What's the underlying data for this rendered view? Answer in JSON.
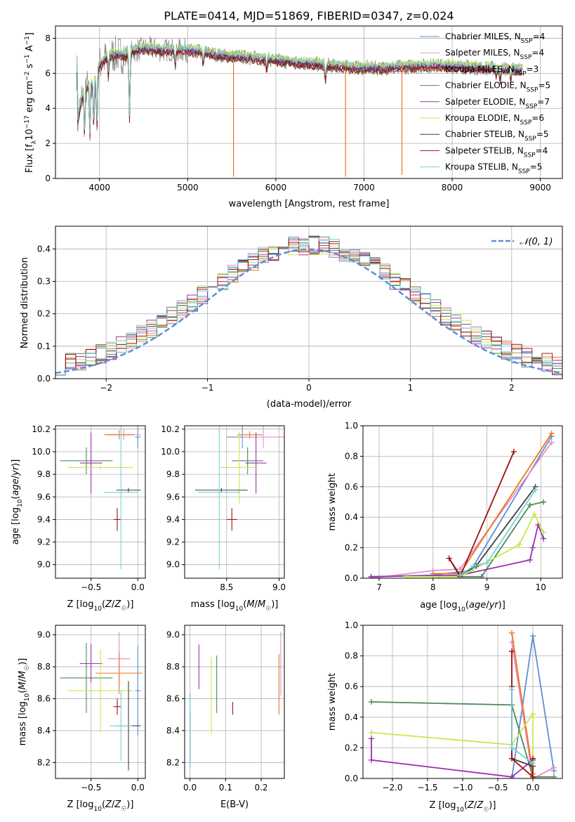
{
  "figure_title": "PLATE=0414, MJD=51869, FIBERID=0347, z=0.024",
  "colors": {
    "grid": "#b0b0b0",
    "gauss": "#5b8fd6",
    "data_gray": "#808080",
    "series": {
      "Chabrier MILES": "#5b8fd6",
      "Salpeter MILES": "#e58fc4",
      "Kroupa MILES": "#e87722",
      "Chabrier ELODIE": "#4e8a5a",
      "Salpeter ELODIE": "#9b30b0",
      "Kroupa ELODIE": "#c9e84a",
      "Chabrier STELIB": "#404040",
      "Salpeter STELIB": "#a01010",
      "Kroupa STELIB": "#76d2d6"
    }
  },
  "chart_data": [
    {
      "id": "spectrum",
      "type": "line",
      "xlabel": "wavelength [Angstrom, rest frame]",
      "ylabel": "Flux [f_λ10^-17 erg cm^-2 s^-1 A^-1]",
      "xlim": [
        3500,
        9250
      ],
      "ylim": [
        0,
        8.7
      ],
      "xticks": [
        4000,
        5000,
        6000,
        7000,
        8000,
        9000
      ],
      "yticks": [
        0,
        2,
        4,
        6,
        8
      ],
      "legend_position": "top-right",
      "legend": [
        {
          "label": "Chabrier MILES, N_SSP=4",
          "color": "#5b8fd6"
        },
        {
          "label": "Salpeter MILES, N_SSP=4",
          "color": "#e58fc4"
        },
        {
          "label": "Kroupa MILES, N_SSP=3",
          "color": "#e87722"
        },
        {
          "label": "Chabrier ELODIE, N_SSP=5",
          "color": "#4e8a5a"
        },
        {
          "label": "Salpeter ELODIE, N_SSP=7",
          "color": "#9b30b0"
        },
        {
          "label": "Kroupa ELODIE, N_SSP=6",
          "color": "#c9e84a"
        },
        {
          "label": "Chabrier STELIB, N_SSP=5",
          "color": "#404040"
        },
        {
          "label": "Salpeter STELIB, N_SSP=4",
          "color": "#a01010"
        },
        {
          "label": "Kroupa STELIB, N_SSP=5",
          "color": "#76d2d6"
        }
      ],
      "continuum": [
        [
          3750,
          3.2
        ],
        [
          3800,
          4.6
        ],
        [
          3850,
          5.2
        ],
        [
          3900,
          5.3
        ],
        [
          3950,
          5.6
        ],
        [
          4000,
          6.5
        ],
        [
          4100,
          7.0
        ],
        [
          4200,
          7.1
        ],
        [
          4300,
          7.0
        ],
        [
          4400,
          7.3
        ],
        [
          4500,
          7.4
        ],
        [
          4600,
          7.4
        ],
        [
          4700,
          7.3
        ],
        [
          4800,
          7.35
        ],
        [
          5000,
          7.3
        ],
        [
          5200,
          7.2
        ],
        [
          5400,
          7.0
        ],
        [
          5600,
          6.95
        ],
        [
          5800,
          6.85
        ],
        [
          6000,
          6.75
        ],
        [
          6200,
          6.6
        ],
        [
          6400,
          6.55
        ],
        [
          6600,
          6.45
        ],
        [
          6800,
          6.35
        ],
        [
          7000,
          6.3
        ],
        [
          7200,
          6.3
        ],
        [
          7400,
          6.35
        ],
        [
          7600,
          6.4
        ],
        [
          7800,
          6.45
        ],
        [
          8000,
          6.4
        ],
        [
          8200,
          6.35
        ],
        [
          8400,
          6.3
        ],
        [
          8600,
          6.25
        ],
        [
          8800,
          6.2
        ],
        [
          9000,
          6.1
        ]
      ],
      "absorption_features": [
        [
          3830,
          2.6
        ],
        [
          3890,
          2.4
        ],
        [
          3935,
          3.0
        ],
        [
          3970,
          2.9
        ],
        [
          4100,
          5.8
        ],
        [
          4340,
          3.3
        ],
        [
          4860,
          6.4
        ],
        [
          5175,
          6.5
        ],
        [
          5895,
          6.2
        ],
        [
          6563,
          5.6
        ],
        [
          8500,
          5.8
        ],
        [
          8545,
          5.6
        ],
        [
          8665,
          5.7
        ]
      ],
      "artifacts": [
        [
          5520,
          0.1
        ],
        [
          6790,
          0.1
        ],
        [
          7430,
          0.2
        ]
      ]
    },
    {
      "id": "residual-histogram",
      "type": "bar",
      "xlabel": "(data-model)/error",
      "ylabel": "Normed distribution",
      "xlim": [
        -2.5,
        2.5
      ],
      "ylim": [
        0,
        0.47
      ],
      "xticks": [
        -2,
        -1,
        0,
        1,
        2
      ],
      "yticks": [
        0.0,
        0.1,
        0.2,
        0.3,
        0.4
      ],
      "legend": [
        {
          "label": "𝒩(0, 1)",
          "color": "#5b8fd6"
        }
      ],
      "gaussian": {
        "mu": 0,
        "sigma": 1
      }
    },
    {
      "id": "age-vs-metallicity",
      "type": "scatter",
      "xlabel": "Z [log10(Z/Z☉)]",
      "ylabel": "age  [log10(age/yr)]",
      "xlim": [
        -0.88,
        0.08
      ],
      "ylim": [
        8.88,
        10.23
      ],
      "xticks": [
        -0.5,
        0.0
      ],
      "yticks": [
        9.0,
        9.2,
        9.4,
        9.6,
        9.8,
        10.0,
        10.2
      ],
      "points": [
        {
          "series": "Chabrier MILES",
          "x": 0.0,
          "y": 10.13,
          "xerr": 0.03,
          "yerr": 0.1
        },
        {
          "series": "Salpeter MILES",
          "x": -0.15,
          "y": 10.15,
          "xerr": 0.18,
          "yerr": 0.05
        },
        {
          "series": "Kroupa MILES",
          "x": -0.2,
          "y": 10.15,
          "xerr": 0.16,
          "yerr": 0.04
        },
        {
          "series": "Chabrier ELODIE",
          "x": -0.55,
          "y": 9.92,
          "xerr": 0.28,
          "yerr": 0.12
        },
        {
          "series": "Salpeter ELODIE",
          "x": -0.5,
          "y": 9.9,
          "xerr": 0.12,
          "yerr": 0.27
        },
        {
          "series": "Kroupa ELODIE",
          "x": -0.4,
          "y": 9.86,
          "xerr": 0.35,
          "yerr": 0.02
        },
        {
          "series": "Chabrier STELIB",
          "x": -0.1,
          "y": 9.66,
          "xerr": 0.13,
          "yerr": 0.02
        },
        {
          "series": "Salpeter STELIB",
          "x": -0.22,
          "y": 9.4,
          "xerr": 0.04,
          "yerr": 0.1
        },
        {
          "series": "Kroupa STELIB",
          "x": -0.18,
          "y": 9.64,
          "xerr": 0.18,
          "yerr": 0.68
        }
      ]
    },
    {
      "id": "age-vs-mass",
      "type": "scatter",
      "xlabel": "mass [log10(M/M☉)]",
      "ylabel": "",
      "xlim": [
        8.1,
        9.05
      ],
      "ylim": [
        8.88,
        10.23
      ],
      "xticks": [
        8.5,
        9.0
      ],
      "yticks": [
        9.0,
        9.2,
        9.4,
        9.6,
        9.8,
        10.0,
        10.2
      ],
      "points": [
        {
          "series": "Chabrier MILES",
          "x": 8.65,
          "y": 10.13,
          "xerr": 0.15,
          "yerr": 0.1
        },
        {
          "series": "Salpeter MILES",
          "x": 8.85,
          "y": 10.13,
          "xerr": 0.2,
          "yerr": 0.1
        },
        {
          "series": "Kroupa MILES",
          "x": 8.72,
          "y": 10.15,
          "xerr": 0.12,
          "yerr": 0.03
        },
        {
          "series": "Chabrier ELODIE",
          "x": 8.7,
          "y": 9.92,
          "xerr": 0.15,
          "yerr": 0.12
        },
        {
          "series": "Salpeter ELODIE",
          "x": 8.78,
          "y": 9.9,
          "xerr": 0.1,
          "yerr": 0.27
        },
        {
          "series": "Kroupa ELODIE",
          "x": 8.62,
          "y": 9.86,
          "xerr": 0.18,
          "yerr": 0.32
        },
        {
          "series": "Chabrier STELIB",
          "x": 8.45,
          "y": 9.66,
          "xerr": 0.25,
          "yerr": 0.02
        },
        {
          "series": "Salpeter STELIB",
          "x": 8.55,
          "y": 9.4,
          "xerr": 0.05,
          "yerr": 0.1
        },
        {
          "series": "Kroupa STELIB",
          "x": 8.43,
          "y": 9.64,
          "xerr": 0.2,
          "yerr": 0.68
        }
      ]
    },
    {
      "id": "mass-weight-vs-age",
      "type": "line",
      "xlabel": "age  [log10(age/yr)]",
      "ylabel": "mass weight",
      "xlim": [
        6.7,
        10.4
      ],
      "ylim": [
        0,
        1.0
      ],
      "xticks": [
        7,
        8,
        9,
        10
      ],
      "yticks": [
        0.0,
        0.2,
        0.4,
        0.6,
        0.8,
        1.0
      ],
      "series": [
        {
          "name": "Chabrier MILES",
          "x": [
            6.85,
            8.0,
            8.7,
            10.2
          ],
          "y": [
            0.01,
            0.02,
            0.05,
            0.93
          ]
        },
        {
          "name": "Salpeter MILES",
          "x": [
            6.85,
            8.0,
            8.5,
            10.2
          ],
          "y": [
            0.0,
            0.05,
            0.06,
            0.89
          ]
        },
        {
          "name": "Kroupa MILES",
          "x": [
            8.0,
            8.5,
            10.2
          ],
          "y": [
            0.03,
            0.03,
            0.95
          ]
        },
        {
          "name": "Chabrier ELODIE",
          "x": [
            8.1,
            8.5,
            8.9,
            9.8,
            10.05
          ],
          "y": [
            0.01,
            0.01,
            0.01,
            0.48,
            0.5
          ]
        },
        {
          "name": "Salpeter ELODIE",
          "x": [
            6.85,
            8.5,
            9.8,
            9.85,
            9.95,
            10.05
          ],
          "y": [
            0.01,
            0.02,
            0.12,
            0.2,
            0.35,
            0.26
          ]
        },
        {
          "name": "Kroupa ELODIE",
          "x": [
            7.5,
            8.5,
            9.6,
            9.88,
            10.05
          ],
          "y": [
            0.01,
            0.01,
            0.22,
            0.42,
            0.3
          ]
        },
        {
          "name": "Chabrier STELIB",
          "x": [
            8.3,
            8.5,
            8.8,
            9.9
          ],
          "y": [
            0.13,
            0.02,
            0.08,
            0.6
          ]
        },
        {
          "name": "Salpeter STELIB",
          "x": [
            8.3,
            8.5,
            9.5
          ],
          "y": [
            0.13,
            0.01,
            0.83
          ]
        },
        {
          "name": "Kroupa STELIB",
          "x": [
            8.5,
            8.75,
            9.0,
            9.9
          ],
          "y": [
            0.02,
            0.08,
            0.1,
            0.58
          ]
        }
      ]
    },
    {
      "id": "mass-vs-metallicity",
      "type": "scatter",
      "xlabel": "Z [log10(Z/Z☉)]",
      "ylabel": "mass [log10(M/M☉)]",
      "xlim": [
        -0.88,
        0.08
      ],
      "ylim": [
        8.1,
        9.06
      ],
      "xticks": [
        -0.5,
        0.0
      ],
      "yticks": [
        8.2,
        8.4,
        8.6,
        8.8,
        9.0
      ],
      "points": [
        {
          "series": "Chabrier MILES",
          "x": 0.0,
          "y": 8.65,
          "xerr": 0.03,
          "yerr": 0.28
        },
        {
          "series": "Salpeter MILES",
          "x": -0.2,
          "y": 8.85,
          "xerr": 0.12,
          "yerr": 0.17
        },
        {
          "series": "Kroupa MILES",
          "x": -0.2,
          "y": 8.76,
          "xerr": 0.25,
          "yerr": 0.13
        },
        {
          "series": "Chabrier ELODIE",
          "x": -0.55,
          "y": 8.73,
          "xerr": 0.28,
          "yerr": 0.22
        },
        {
          "series": "Salpeter ELODIE",
          "x": -0.5,
          "y": 8.82,
          "xerr": 0.12,
          "yerr": 0.12
        },
        {
          "series": "Kroupa ELODIE",
          "x": -0.4,
          "y": 8.65,
          "xerr": 0.35,
          "yerr": 0.26
        },
        {
          "series": "Chabrier STELIB",
          "x": -0.1,
          "y": 8.43,
          "xerr": 0.13,
          "yerr": 0.28
        },
        {
          "series": "Salpeter STELIB",
          "x": -0.22,
          "y": 8.55,
          "xerr": 0.04,
          "yerr": 0.05
        },
        {
          "series": "Kroupa STELIB",
          "x": -0.18,
          "y": 8.43,
          "xerr": 0.12,
          "yerr": 0.22
        }
      ]
    },
    {
      "id": "mass-vs-extinction",
      "type": "scatter",
      "xlabel": "E(B-V)",
      "ylabel": "",
      "xlim": [
        -0.015,
        0.265
      ],
      "ylim": [
        8.1,
        9.06
      ],
      "xticks": [
        0.0,
        0.1,
        0.2
      ],
      "yticks": [
        8.2,
        8.4,
        8.6,
        8.8,
        9.0
      ],
      "points": [
        {
          "series": "Chabrier MILES",
          "x": 0.0,
          "y": 8.4,
          "yerr": 0.23
        },
        {
          "series": "Salpeter MILES",
          "x": 0.255,
          "y": 8.82,
          "yerr": 0.2
        },
        {
          "series": "Kroupa MILES",
          "x": 0.25,
          "y": 8.69,
          "yerr": 0.19
        },
        {
          "series": "Chabrier ELODIE",
          "x": 0.075,
          "y": 8.69,
          "yerr": 0.18
        },
        {
          "series": "Salpeter ELODIE",
          "x": 0.025,
          "y": 8.8,
          "yerr": 0.14
        },
        {
          "series": "Kroupa ELODIE",
          "x": 0.06,
          "y": 8.62,
          "yerr": 0.24
        },
        {
          "series": "Chabrier STELIB",
          "x": 0.0,
          "y": 8.36,
          "yerr": 0.16
        },
        {
          "series": "Salpeter STELIB",
          "x": 0.12,
          "y": 8.54,
          "yerr": 0.04
        },
        {
          "series": "Kroupa STELIB",
          "x": 0.0,
          "y": 8.4,
          "yerr": 0.22
        }
      ]
    },
    {
      "id": "mass-weight-vs-metallicity",
      "type": "line",
      "xlabel": "Z [log10(Z/Z☉)]",
      "ylabel": "mass weight",
      "xlim": [
        -2.42,
        0.42
      ],
      "ylim": [
        0,
        1.0
      ],
      "xticks": [
        -2.0,
        -1.5,
        -1.0,
        -0.5,
        0.0
      ],
      "yticks": [
        0.0,
        0.2,
        0.4,
        0.6,
        0.8,
        1.0
      ],
      "series": [
        {
          "name": "Chabrier MILES",
          "x": [
            -0.3,
            0.0,
            0.3
          ],
          "y": [
            0.0,
            0.93,
            0.05
          ]
        },
        {
          "name": "Salpeter MILES",
          "x": [
            -0.3,
            0.0,
            0.3
          ],
          "y": [
            0.89,
            0.0,
            0.07
          ]
        },
        {
          "name": "Kroupa MILES",
          "x": [
            -0.3,
            0.0
          ],
          "y": [
            0.95,
            0.03
          ]
        },
        {
          "name": "Chabrier ELODIE",
          "x": [
            -2.3,
            -0.3,
            0.0,
            0.3
          ],
          "y": [
            0.5,
            0.48,
            0.01,
            0.01
          ]
        },
        {
          "name": "Salpeter ELODIE",
          "x": [
            -2.3,
            -2.3,
            -0.3,
            0.0
          ],
          "y": [
            0.26,
            0.12,
            0.01,
            0.12
          ]
        },
        {
          "name": "Kroupa ELODIE",
          "x": [
            -2.3,
            -0.3,
            0.0,
            0.0
          ],
          "y": [
            0.3,
            0.22,
            0.42,
            0.0
          ]
        },
        {
          "name": "Chabrier STELIB",
          "x": [
            -0.3,
            -0.3,
            0.0
          ],
          "y": [
            0.6,
            0.13,
            0.08
          ]
        },
        {
          "name": "Salpeter STELIB",
          "x": [
            -0.3,
            -0.3,
            0.0,
            0.0
          ],
          "y": [
            0.83,
            0.13,
            0.01,
            0.13
          ]
        },
        {
          "name": "Kroupa STELIB",
          "x": [
            -0.3,
            -0.3,
            0.0
          ],
          "y": [
            0.58,
            0.2,
            0.1
          ]
        }
      ]
    }
  ]
}
